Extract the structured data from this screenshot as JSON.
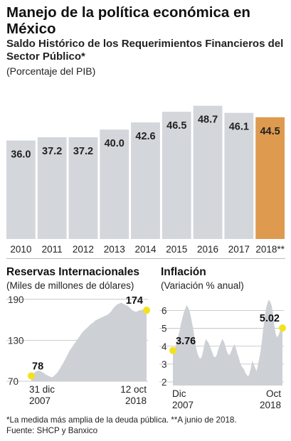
{
  "header": {
    "title": "Manejo de la política económica en México",
    "subtitle": "Saldo Histórico de los Requerimientos Financieros del Sector Público*",
    "unit": "(Porcentaje del PIB)"
  },
  "colors": {
    "bar": "#d3d6db",
    "highlight": "#de9a4f",
    "area": "#cdd0d4",
    "marker": "#f2e21e"
  },
  "chart_data": [
    {
      "type": "bar",
      "categories": [
        "2010",
        "2011",
        "2012",
        "2013",
        "2014",
        "2015",
        "2016",
        "2017",
        "2018**"
      ],
      "values": [
        36.0,
        37.2,
        37.2,
        40.0,
        42.6,
        46.5,
        48.7,
        46.1,
        44.5
      ],
      "value_labels": [
        "36.0",
        "37.2",
        "37.2",
        "40.0",
        "42.6",
        "46.5",
        "48.7",
        "46.1",
        "44.5"
      ],
      "highlight_index": 8,
      "title": "Saldo Histórico de los Requerimientos Financieros del Sector Público*",
      "ylabel": "(Porcentaje del PIB)",
      "ylim": [
        0,
        52
      ]
    },
    {
      "type": "area",
      "title": "Reservas Internacionales",
      "ylabel": "(Miles de millones de dólares)",
      "yticks": [
        "190",
        "130",
        "70"
      ],
      "ylim": [
        70,
        195
      ],
      "x_start_label": [
        "31 dic",
        "2007"
      ],
      "x_end_label": [
        "12 oct",
        "2018"
      ],
      "values": [
        78,
        80,
        82,
        84,
        85,
        86,
        85,
        84,
        83,
        82,
        80,
        79,
        78,
        77,
        76,
        76,
        78,
        80,
        82,
        85,
        88,
        92,
        95,
        99,
        103,
        107,
        111,
        115,
        118,
        121,
        124,
        127,
        130,
        133,
        136,
        139,
        142,
        144,
        146,
        148,
        150,
        152,
        154,
        155,
        157,
        159,
        160,
        161,
        162,
        163,
        164,
        165,
        166,
        167,
        168,
        170,
        172,
        175,
        178,
        180,
        182,
        183,
        184,
        185,
        184,
        183,
        182,
        181,
        180,
        178,
        176,
        174,
        173,
        172,
        172,
        173,
        174,
        174,
        175,
        175,
        174,
        174
      ],
      "markers": [
        {
          "label": "78",
          "value": 78,
          "position": "start"
        },
        {
          "label": "174",
          "value": 174,
          "position": "end"
        }
      ]
    },
    {
      "type": "area",
      "title": "Inflación",
      "ylabel": "(Variación % anual)",
      "yticks": [
        "6",
        "5",
        "4",
        "3",
        "2"
      ],
      "ylim": [
        1.8,
        6.9
      ],
      "x_start_label": [
        "Dic",
        "2007"
      ],
      "x_end_label": [
        "Oct",
        "2018"
      ],
      "values": [
        3.76,
        3.8,
        4.0,
        4.3,
        4.6,
        4.9,
        5.3,
        5.6,
        5.9,
        6.1,
        6.3,
        6.2,
        6.0,
        5.7,
        5.3,
        4.9,
        4.4,
        3.9,
        3.6,
        3.4,
        3.3,
        3.4,
        3.7,
        4.1,
        4.4,
        4.3,
        4.2,
        4.0,
        3.8,
        3.6,
        3.4,
        3.4,
        3.5,
        3.8,
        4.0,
        4.2,
        4.4,
        4.3,
        4.1,
        3.8,
        3.6,
        3.5,
        3.6,
        3.8,
        4.0,
        4.1,
        3.9,
        3.6,
        3.4,
        3.1,
        2.9,
        2.8,
        2.7,
        2.5,
        2.4,
        2.3,
        2.5,
        2.8,
        3.2,
        3.0,
        2.8,
        2.6,
        2.9,
        3.3,
        3.7,
        4.3,
        5.0,
        5.6,
        6.1,
        6.4,
        6.6,
        6.5,
        6.3,
        5.9,
        5.2,
        4.7,
        4.5,
        4.6,
        4.8,
        5.0,
        5.02
      ],
      "markers": [
        {
          "label": "3.76",
          "value": 3.76,
          "position": "start"
        },
        {
          "label": "5.02",
          "value": 5.02,
          "position": "end"
        }
      ]
    }
  ],
  "footer": {
    "note": "*La medida más amplia de la deuda pública. **A junio de 2018.",
    "source": "Fuente: SHCP y Banxico"
  }
}
